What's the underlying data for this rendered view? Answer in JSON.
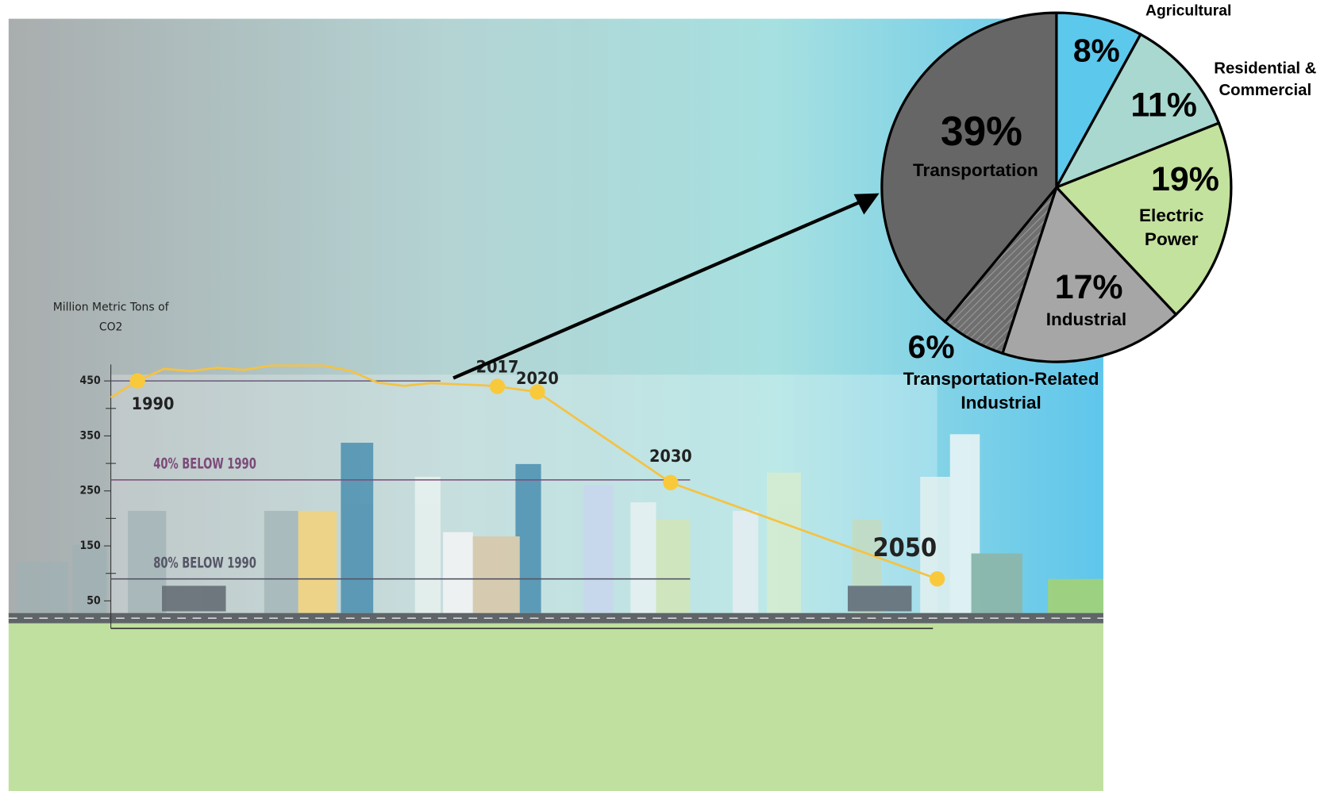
{
  "chart_data": [
    {
      "type": "line",
      "y_label": "Million Metric Tons of CO2",
      "ylim": [
        0,
        480
      ],
      "yticks": [
        50,
        150,
        250,
        350,
        450
      ],
      "xlim": [
        1988,
        2050
      ],
      "series": [
        {
          "color": "#f5c242",
          "x": [
            1988,
            1990,
            1992,
            1994,
            1996,
            1998,
            2000,
            2002,
            2004,
            2006,
            2008,
            2010,
            2012,
            2014,
            2016,
            2017,
            2020,
            2030,
            2050
          ],
          "values": [
            420,
            450,
            472,
            468,
            474,
            470,
            478,
            478,
            478,
            468,
            447,
            441,
            446,
            444,
            442,
            440,
            430,
            265,
            90
          ]
        }
      ],
      "points": {
        "color": "#f9c93c",
        "x": [
          1990,
          2017,
          2020,
          2030,
          2050
        ],
        "values": [
          450,
          440,
          430,
          265,
          90
        ]
      },
      "reference_lines": [
        {
          "value": 450,
          "color": "#6b5a7a"
        },
        {
          "label": "40% BELOW 1990",
          "value": 270,
          "color": "#7b4a78"
        },
        {
          "label": "80% BELOW 1990",
          "value": 90,
          "color": "#555566"
        }
      ]
    },
    {
      "type": "pie",
      "labels": [
        "Agricultural",
        "Residential & Commercial",
        "Electric Power",
        "Industrial",
        "Transportation-Related Industrial",
        "Transportation"
      ],
      "values": [
        8,
        11,
        19,
        17,
        6,
        39
      ],
      "value_labels": [
        "8%",
        "11%",
        "19%",
        "17%",
        "6%",
        "39%"
      ],
      "colors": [
        "#5cc8ec",
        "#a8d8cf",
        "#c3e29d",
        "#a6a6a6",
        "#6f6f6f",
        "#666666"
      ],
      "hatched": [
        false,
        false,
        false,
        false,
        true,
        false
      ]
    }
  ]
}
